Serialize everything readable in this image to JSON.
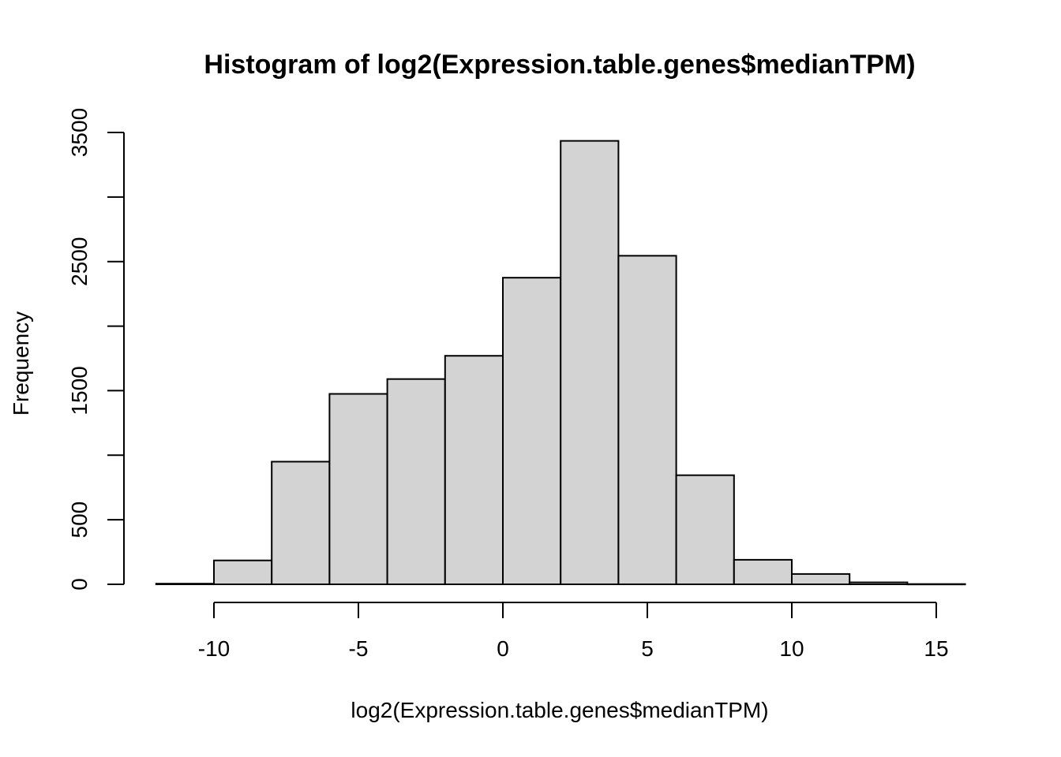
{
  "chart_data": {
    "type": "bar",
    "title": "Histogram of log2(Expression.table.genes$medianTPM)",
    "xlabel": "log2(Expression.table.genes$medianTPM)",
    "ylabel": "Frequency",
    "bin_edges": [
      -12,
      -10,
      -8,
      -6,
      -4,
      -2,
      0,
      2,
      4,
      6,
      8,
      10,
      12,
      14,
      16
    ],
    "values": [
      5,
      185,
      950,
      1475,
      1590,
      1770,
      2375,
      3435,
      2545,
      845,
      190,
      80,
      15,
      2
    ],
    "bar_color": "#d3d3d3",
    "xlim": [
      -12,
      16
    ],
    "ylim": [
      0,
      3500
    ],
    "x_ticks": [
      -10,
      -5,
      0,
      5,
      10,
      15
    ],
    "x_tick_labels": [
      "-10",
      "-5",
      "0",
      "5",
      "10",
      "15"
    ],
    "y_ticks": [
      0,
      500,
      1000,
      1500,
      2000,
      2500,
      3000,
      3500
    ],
    "y_tick_labels": [
      "0",
      "500",
      "",
      "1500",
      "",
      "2500",
      "",
      "3500"
    ],
    "grid": false
  }
}
